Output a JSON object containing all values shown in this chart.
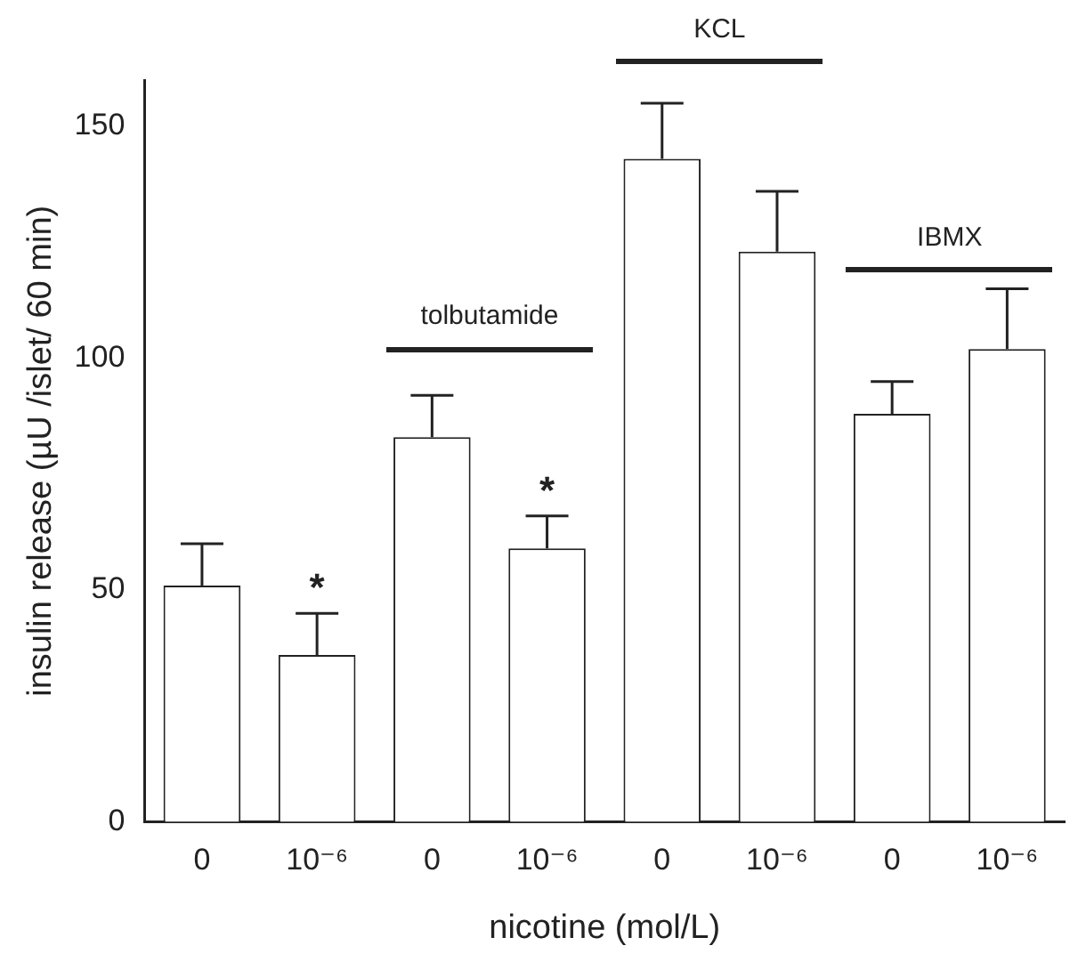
{
  "chart_data": {
    "type": "bar",
    "xlabel": "nicotine (mol/L)",
    "ylabel": "insulin release (µU /islet/ 60 min)",
    "categories": [
      "0",
      "10⁻⁶",
      "0",
      "10⁻⁶",
      "0",
      "10⁻⁶",
      "0",
      "10⁻⁶"
    ],
    "values": [
      51,
      36,
      83,
      59,
      143,
      123,
      88,
      102
    ],
    "errors": [
      [
        51,
        60
      ],
      [
        36,
        45
      ],
      [
        83,
        92
      ],
      [
        59,
        66
      ],
      [
        143,
        155
      ],
      [
        123,
        136
      ],
      [
        88,
        95
      ],
      [
        102,
        115
      ]
    ],
    "color": "#ffffff",
    "ylim": [
      0,
      160
    ],
    "yticks": [
      0,
      50,
      100,
      150
    ],
    "grid": false,
    "legend": false,
    "annotations": [
      "tolbutamide",
      "KCL",
      "IBMX",
      "*",
      "*"
    ]
  }
}
